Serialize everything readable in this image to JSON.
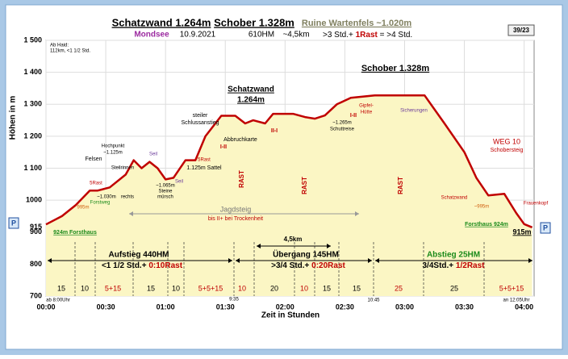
{
  "chart_data": {
    "type": "line",
    "title": [
      "Schatzwand 1.264m",
      "Schober 1.328m",
      "Ruine Wartenfels ~1.020m"
    ],
    "subtitle": [
      "Mondsee",
      "10.9.2021",
      "610HM",
      "~4,5km",
      ">3 Std.+",
      "1Rast",
      "= >4 Std."
    ],
    "badge": "39/23",
    "x_label": "Zeit in Stunden",
    "y_label": "Höhen in m",
    "x": [
      0,
      8,
      15,
      22,
      26,
      32,
      40,
      44,
      48,
      52,
      56,
      60,
      64,
      70,
      75,
      80,
      88,
      95,
      100,
      104,
      110,
      114,
      124,
      130,
      135,
      140,
      146,
      153,
      165,
      190,
      200,
      210,
      216,
      222,
      230,
      236,
      240,
      244
    ],
    "series": [
      {
        "color": "#c00000",
        "fill": "#fbf6c4",
        "values": [
          924,
          950,
          985,
          1030,
          1030,
          1040,
          1080,
          1125,
          1100,
          1120,
          1100,
          1065,
          1070,
          1125,
          1125,
          1200,
          1264,
          1264,
          1240,
          1250,
          1240,
          1270,
          1270,
          1260,
          1255,
          1265,
          1300,
          1320,
          1328,
          1328,
          1240,
          1150,
          1070,
          1015,
          1020,
          960,
          925,
          915
        ]
      }
    ],
    "xlim": [
      0,
      245
    ],
    "ylim": [
      700,
      1500
    ],
    "xticks": [
      {
        "value": 0,
        "label": "00:00"
      },
      {
        "value": 30,
        "label": "00:30"
      },
      {
        "value": 60,
        "label": "01:00"
      },
      {
        "value": 90,
        "label": "01:30"
      },
      {
        "value": 120,
        "label": "02:00"
      },
      {
        "value": 150,
        "label": "02:30"
      },
      {
        "value": 180,
        "label": "03:00"
      },
      {
        "value": 210,
        "label": "03:30"
      },
      {
        "value": 240,
        "label": "04:00"
      }
    ],
    "yticks": [
      {
        "value": 700,
        "label": "700"
      },
      {
        "value": 800,
        "label": "800"
      },
      {
        "value": 900,
        "label": "900"
      },
      {
        "value": 915,
        "label": "915"
      },
      {
        "value": 1000,
        "label": "1000"
      },
      {
        "value": 1100,
        "label": "1 100"
      },
      {
        "value": 1200,
        "label": "1 200"
      },
      {
        "value": 1300,
        "label": "1 300"
      },
      {
        "value": 1400,
        "label": "1 400"
      },
      {
        "value": 1500,
        "label": "1 500"
      }
    ],
    "grid": true,
    "time_marks": [
      "ab 8:00Uhr",
      "9:35",
      "10:45",
      "an 12:05Uhr"
    ],
    "segments": [
      "15",
      "10",
      "5+15",
      "15",
      "10",
      "5+5+15",
      "10",
      "20",
      "10",
      "15",
      "15",
      "25",
      "25",
      "5+5+15"
    ],
    "rests": [
      "RAST",
      "RAST",
      "RAST"
    ],
    "summary": [
      {
        "title": "Aufstieg 440HM",
        "time": "<1 1/2 Std.+",
        "rest": "0:10Rast"
      },
      {
        "title": "Übergang 145HM",
        "time": ">3/4 Std.+",
        "rest": "0:20Rast"
      },
      {
        "title": "Abstieg 25HM",
        "time": "3/4Std.+",
        "rest": "1/2Rast"
      }
    ],
    "annotations": [
      "Ab Haid:",
      "112km, <1 1/2 Std.",
      "Schatzwand",
      "1.264m",
      "Schober 1.328m",
      "steiler",
      "Schlussanstieg",
      "Abbruchkarte",
      "I-II",
      "II-I",
      "I-II",
      "Gipfel-",
      "Hütte",
      "~1.265m",
      "Schuttreise",
      "Sicherungen",
      "WEG 10",
      "Schobersteig",
      "Hochpunkt",
      "~1.125m",
      "Felsen",
      "5Rast",
      "~1.030m",
      "Steilrinnen",
      "rechts",
      "Forstweg",
      "995m",
      "~1.065m",
      "Steine",
      "mürsch",
      "Seil",
      "Seil",
      "1.125m Sattel",
      "5Rast",
      "Jagdsteig",
      "bis II+ bei Trockenheit",
      "4,5km",
      "924m Forsthaus",
      "Forsthaus 924m",
      "915m",
      "Schatzwand",
      "~995m",
      "Frauenkopf",
      "P",
      "P"
    ]
  }
}
